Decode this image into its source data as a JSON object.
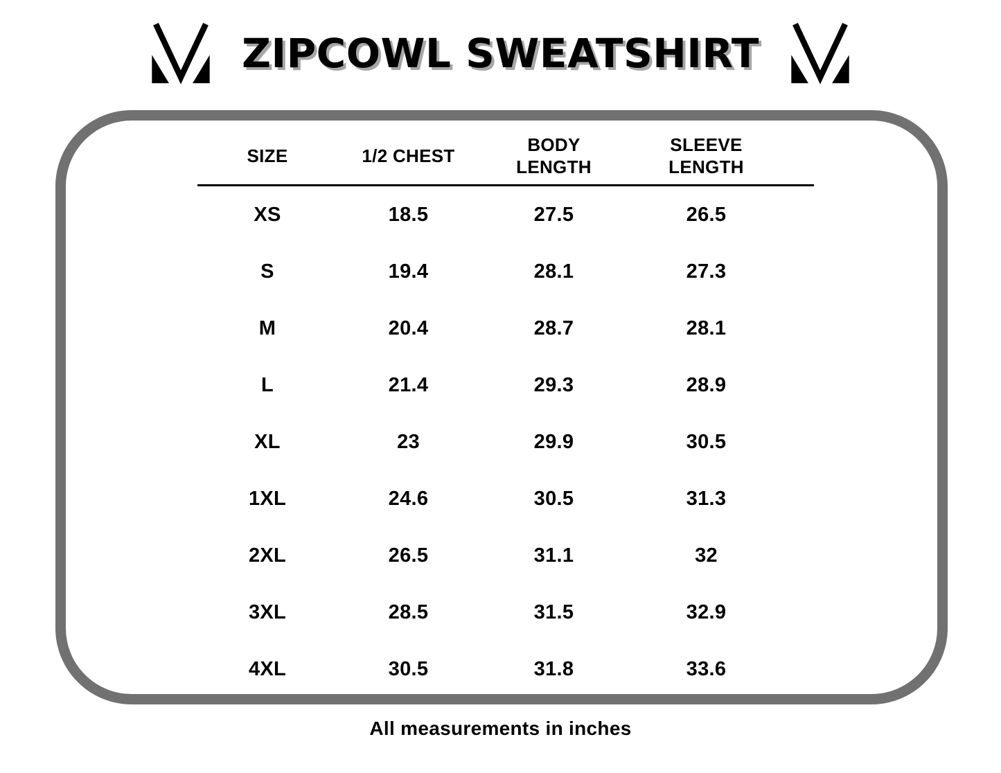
{
  "page": {
    "title": "ZIPCOWL SWEATSHIRT",
    "footer_note": "All measurements in inches"
  },
  "colors": {
    "text": "#000000",
    "panel_border_gray": "#717171",
    "title_shadow_gray": "#a6a6a6",
    "logo_black": "#000000"
  },
  "icons": {
    "left_logo": "m-monogram-icon",
    "right_logo": "m-monogram-icon"
  },
  "table": {
    "columns": [
      {
        "line1": "SIZE"
      },
      {
        "line1": "1/2 CHEST"
      },
      {
        "line1": "BODY",
        "line2": "LENGTH"
      },
      {
        "line1": "SLEEVE",
        "line2": "LENGTH"
      }
    ],
    "rows": [
      [
        "XS",
        "18.5",
        "27.5",
        "26.5"
      ],
      [
        "S",
        "19.4",
        "28.1",
        "27.3"
      ],
      [
        "M",
        "20.4",
        "28.7",
        "28.1"
      ],
      [
        "L",
        "21.4",
        "29.3",
        "28.9"
      ],
      [
        "XL",
        "23",
        "29.9",
        "30.5"
      ],
      [
        "1XL",
        "24.6",
        "30.5",
        "31.3"
      ],
      [
        "2XL",
        "26.5",
        "31.1",
        "32"
      ],
      [
        "3XL",
        "28.5",
        "31.5",
        "32.9"
      ],
      [
        "4XL",
        "30.5",
        "31.8",
        "33.6"
      ]
    ]
  },
  "chart_data": {
    "type": "table",
    "title": "ZIPCOWL SWEATSHIRT",
    "columns": [
      "SIZE",
      "1/2 CHEST",
      "BODY LENGTH",
      "SLEEVE LENGTH"
    ],
    "categories": [
      "XS",
      "S",
      "M",
      "L",
      "XL",
      "1XL",
      "2XL",
      "3XL",
      "4XL"
    ],
    "series": [
      {
        "name": "1/2 CHEST",
        "values": [
          18.5,
          19.4,
          20.4,
          21.4,
          23,
          24.6,
          26.5,
          28.5,
          30.5
        ]
      },
      {
        "name": "BODY LENGTH",
        "values": [
          27.5,
          28.1,
          28.7,
          29.3,
          29.9,
          30.5,
          31.1,
          31.5,
          31.8
        ]
      },
      {
        "name": "SLEEVE LENGTH",
        "values": [
          26.5,
          27.3,
          28.1,
          28.9,
          30.5,
          31.3,
          32,
          32.9,
          33.6
        ]
      }
    ],
    "note": "All measurements in inches",
    "units": "inches"
  }
}
